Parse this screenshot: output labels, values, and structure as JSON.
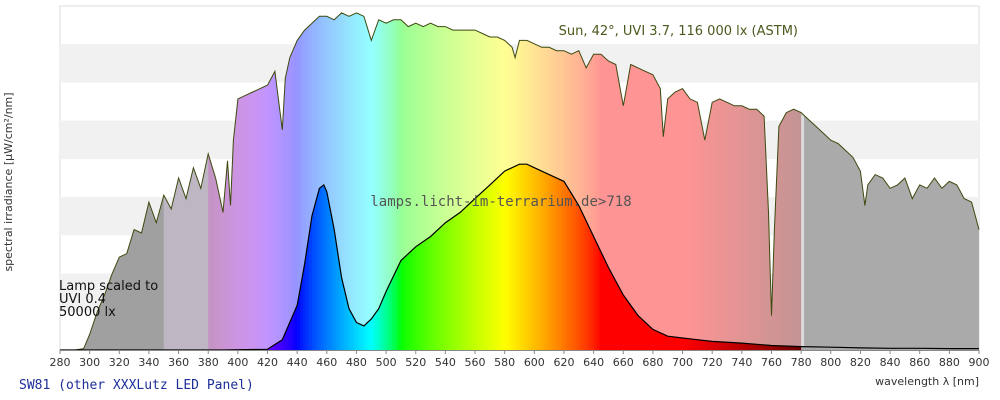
{
  "chart_data": {
    "type": "area",
    "title": "",
    "xlabel": "wavelength λ [nm]",
    "ylabel": "spectral irradiance [µW/cm²/nm]",
    "xlim": [
      280,
      900
    ],
    "ylim": [
      0,
      1
    ],
    "x_ticks": [
      280,
      300,
      320,
      340,
      360,
      380,
      400,
      420,
      440,
      460,
      480,
      500,
      520,
      540,
      560,
      580,
      600,
      620,
      640,
      660,
      680,
      700,
      720,
      740,
      760,
      780,
      800,
      820,
      840,
      860,
      880,
      900
    ],
    "y_ticks_labeled": false,
    "grid": "horizontal bands",
    "series": [
      {
        "name": "Sun, 42°, UVI 3.7, 116 000 lx (ASTM)",
        "x": [
          280,
          290,
          296,
          300,
          305,
          310,
          315,
          320,
          325,
          330,
          335,
          340,
          345,
          350,
          355,
          360,
          365,
          370,
          375,
          380,
          385,
          390,
          393,
          395,
          397,
          400,
          405,
          410,
          415,
          420,
          425,
          430,
          432,
          435,
          440,
          445,
          450,
          455,
          460,
          465,
          470,
          475,
          480,
          485,
          490,
          495,
          500,
          505,
          510,
          515,
          520,
          525,
          530,
          535,
          540,
          545,
          550,
          555,
          560,
          565,
          570,
          575,
          580,
          585,
          587,
          590,
          595,
          600,
          605,
          610,
          615,
          620,
          625,
          630,
          635,
          640,
          645,
          650,
          655,
          660,
          665,
          670,
          675,
          680,
          685,
          687,
          690,
          695,
          700,
          705,
          710,
          715,
          720,
          725,
          730,
          735,
          740,
          745,
          750,
          755,
          758,
          760,
          762,
          765,
          770,
          775,
          780,
          785,
          790,
          795,
          800,
          805,
          810,
          815,
          820,
          823,
          825,
          830,
          835,
          840,
          845,
          850,
          855,
          860,
          865,
          870,
          875,
          880,
          885,
          890,
          895,
          900
        ],
        "values": [
          0,
          0,
          0.004,
          0.045,
          0.11,
          0.16,
          0.22,
          0.27,
          0.28,
          0.35,
          0.34,
          0.43,
          0.37,
          0.45,
          0.41,
          0.5,
          0.44,
          0.53,
          0.47,
          0.57,
          0.5,
          0.4,
          0.55,
          0.42,
          0.61,
          0.73,
          0.74,
          0.75,
          0.76,
          0.77,
          0.81,
          0.64,
          0.79,
          0.85,
          0.9,
          0.93,
          0.95,
          0.97,
          0.97,
          0.96,
          0.98,
          0.97,
          0.98,
          0.97,
          0.9,
          0.96,
          0.95,
          0.96,
          0.96,
          0.94,
          0.95,
          0.94,
          0.95,
          0.94,
          0.94,
          0.93,
          0.93,
          0.93,
          0.93,
          0.92,
          0.91,
          0.91,
          0.9,
          0.88,
          0.85,
          0.9,
          0.9,
          0.89,
          0.88,
          0.88,
          0.87,
          0.87,
          0.86,
          0.87,
          0.82,
          0.86,
          0.86,
          0.84,
          0.83,
          0.71,
          0.83,
          0.82,
          0.81,
          0.8,
          0.76,
          0.62,
          0.73,
          0.75,
          0.76,
          0.73,
          0.72,
          0.61,
          0.72,
          0.73,
          0.72,
          0.71,
          0.71,
          0.7,
          0.7,
          0.68,
          0.4,
          0.1,
          0.35,
          0.65,
          0.69,
          0.7,
          0.69,
          0.67,
          0.65,
          0.63,
          0.61,
          0.6,
          0.58,
          0.56,
          0.52,
          0.42,
          0.48,
          0.51,
          0.5,
          0.47,
          0.48,
          0.5,
          0.44,
          0.48,
          0.47,
          0.5,
          0.47,
          0.49,
          0.48,
          0.44,
          0.43,
          0.35
        ],
        "line_color": "#3d4a10"
      },
      {
        "name": "Lamp scaled to UVI 0.4 50000 lx",
        "x": [
          280,
          390,
          420,
          430,
          440,
          445,
          450,
          455,
          458,
          460,
          465,
          470,
          475,
          480,
          485,
          490,
          495,
          500,
          510,
          520,
          530,
          540,
          550,
          560,
          570,
          580,
          590,
          595,
          600,
          610,
          620,
          630,
          640,
          650,
          660,
          670,
          680,
          690,
          700,
          710,
          720,
          740,
          760,
          780,
          800,
          820,
          840,
          860,
          880,
          900
        ],
        "values": [
          0,
          0,
          0.002,
          0.03,
          0.13,
          0.25,
          0.39,
          0.47,
          0.48,
          0.46,
          0.35,
          0.21,
          0.12,
          0.08,
          0.07,
          0.09,
          0.12,
          0.17,
          0.26,
          0.3,
          0.33,
          0.37,
          0.4,
          0.44,
          0.48,
          0.52,
          0.54,
          0.54,
          0.53,
          0.51,
          0.49,
          0.42,
          0.33,
          0.24,
          0.16,
          0.1,
          0.06,
          0.04,
          0.035,
          0.03,
          0.025,
          0.02,
          0.013,
          0.01,
          0.008,
          0.006,
          0.005,
          0.005,
          0.004,
          0.004
        ],
        "line_color": "#000000"
      }
    ],
    "annotations": {
      "sun_label": "Sun, 42°, UVI 3.7, 116 000 lx (ASTM)",
      "lamp_label": [
        "Lamp scaled to",
        "UVI 0.4",
        "50000 lx"
      ],
      "watermark": "lamps.licht-im-terrarium.de>718",
      "footer": "SW81 (other XXXLutz LED Panel)"
    }
  }
}
